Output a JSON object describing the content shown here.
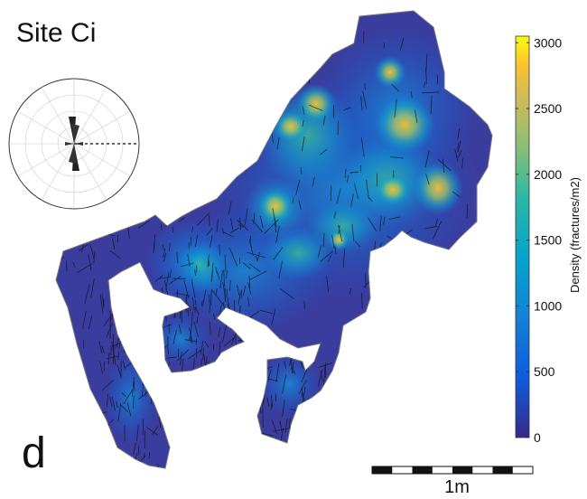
{
  "figure": {
    "title": "Site Ci",
    "panel_letter": "d",
    "colors": {
      "low": "#352a87",
      "mid_blue": "#0f5cdd",
      "cyan": "#15b1b4",
      "green": "#7fbf7b",
      "orange": "#f0b22a",
      "high": "#f9fb0e",
      "trace": "#111111"
    }
  },
  "colorbar": {
    "label": "Density (fractures/m2)",
    "min": 0,
    "max": 3050,
    "ticks": [
      "0",
      "500",
      "1000",
      "1500",
      "2000",
      "2500",
      "3000"
    ],
    "tick_values": [
      0,
      500,
      1000,
      1500,
      2000,
      2500,
      3000
    ],
    "colormap": "parula"
  },
  "rose": {
    "description_icon": "rose-diagram",
    "dominant_orientation_deg": 5
  },
  "scale_bar": {
    "label": "1m",
    "segments": 8
  }
}
